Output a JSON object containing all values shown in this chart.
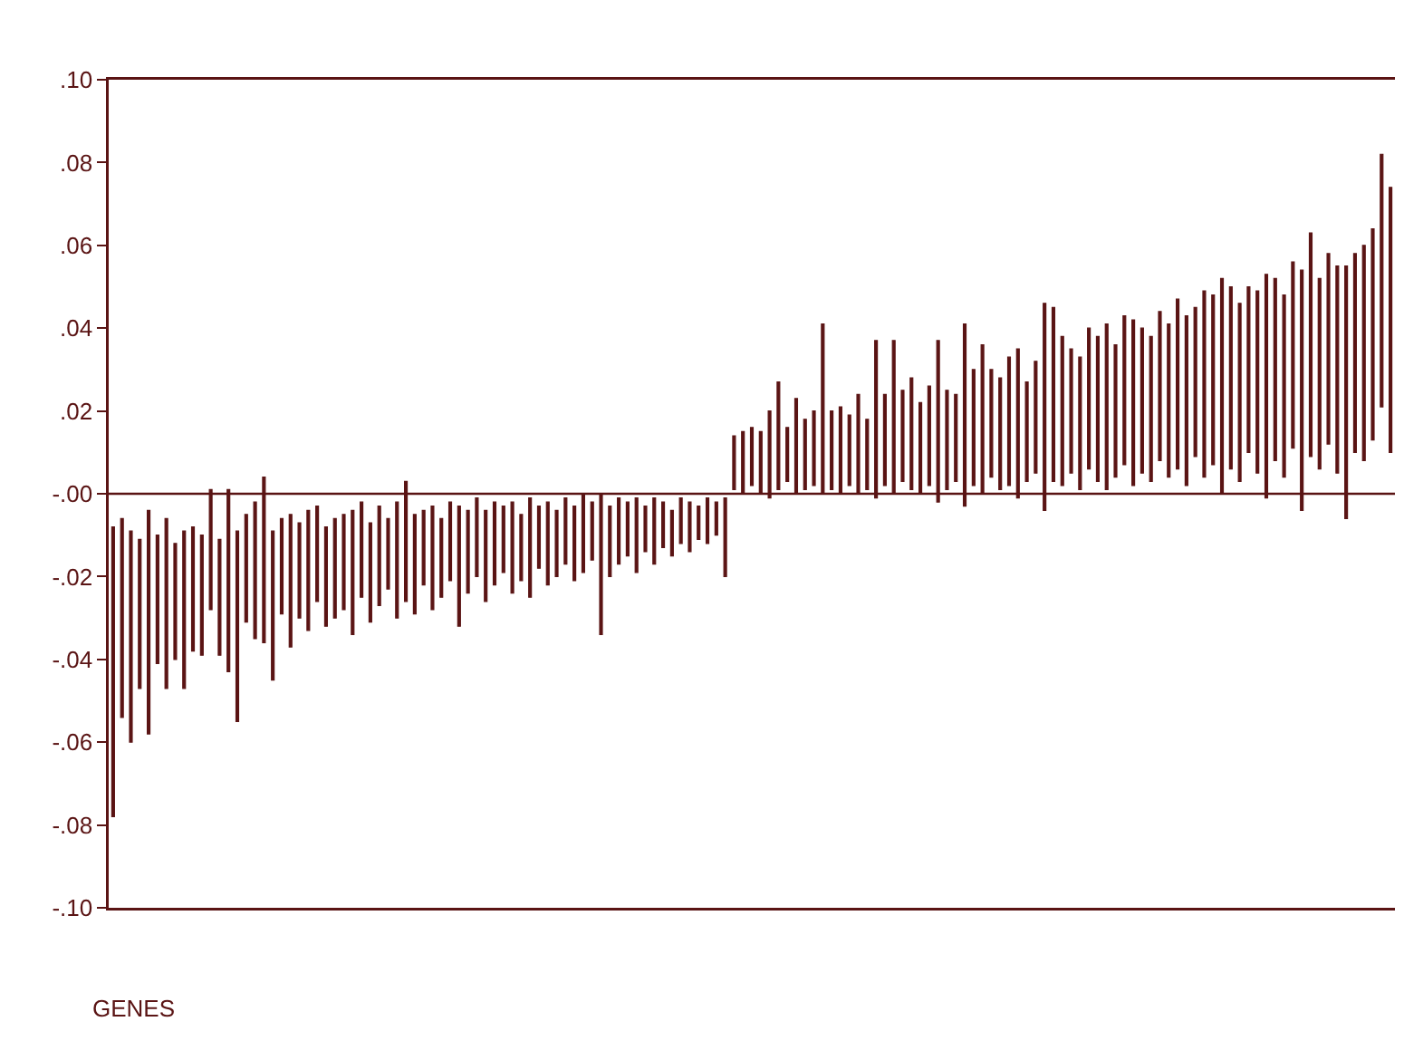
{
  "chart_data": {
    "type": "bar",
    "xlabel": "GENES",
    "color": "#5a1414",
    "tick_labels": "y",
    "grid": false,
    "legend": false,
    "categories": [
      null,
      null,
      null,
      null,
      null,
      null,
      null,
      null,
      null,
      null,
      null,
      null,
      null,
      null,
      null,
      null,
      null,
      null,
      null,
      null,
      null,
      null,
      null,
      null,
      null,
      null,
      null,
      null,
      null,
      null,
      null,
      null,
      null,
      null,
      null,
      null,
      null,
      null,
      null,
      null,
      null,
      null,
      null,
      null,
      null,
      null,
      null,
      null,
      null,
      null,
      null,
      null,
      null,
      null,
      null,
      null,
      null,
      null,
      null,
      null,
      null,
      null,
      null,
      null,
      null,
      null,
      null,
      null,
      null,
      null,
      null,
      null,
      null,
      null,
      null,
      null,
      null,
      null,
      null,
      null,
      null,
      null,
      null,
      null,
      null,
      null,
      null,
      null,
      null,
      null,
      null,
      null,
      null,
      null,
      null,
      null,
      null,
      null,
      null,
      null,
      null,
      null,
      null,
      null,
      null,
      null,
      null,
      null,
      null,
      null,
      null,
      null,
      null,
      null,
      null,
      null,
      null,
      null,
      null,
      null,
      null,
      null,
      null,
      null,
      null,
      null,
      null,
      null,
      null,
      null,
      null,
      null,
      null,
      null,
      null,
      null,
      null,
      null,
      null,
      null,
      null,
      null,
      null,
      null,
      null
    ],
    "values": [
      0.07,
      0.048,
      0.051,
      0.036,
      0.054,
      0.031,
      0.041,
      0.028,
      0.038,
      0.03,
      0.029,
      0.029,
      0.028,
      0.044,
      0.046,
      0.026,
      0.033,
      0.04,
      0.036,
      0.023,
      0.032,
      0.023,
      0.029,
      0.023,
      0.024,
      0.024,
      0.023,
      0.03,
      0.023,
      0.024,
      0.024,
      0.017,
      0.028,
      0.029,
      0.024,
      0.018,
      0.025,
      0.019,
      0.019,
      0.029,
      0.02,
      0.019,
      0.022,
      0.02,
      0.016,
      0.022,
      0.016,
      0.024,
      0.015,
      0.02,
      0.016,
      0.016,
      0.018,
      0.019,
      0.014,
      0.034,
      0.017,
      0.016,
      0.013,
      0.018,
      0.011,
      0.016,
      0.011,
      0.011,
      0.011,
      0.012,
      0.008,
      0.011,
      0.008,
      0.019,
      0.013,
      0.015,
      0.014,
      0.015,
      0.021,
      0.026,
      0.013,
      0.023,
      0.017,
      0.018,
      0.041,
      0.019,
      0.021,
      0.017,
      0.024,
      0.017,
      0.038,
      0.022,
      0.037,
      0.022,
      0.027,
      0.022,
      0.024,
      0.039,
      0.024,
      0.021,
      0.044,
      0.028,
      0.036,
      0.026,
      0.027,
      0.031,
      0.036,
      0.024,
      0.027,
      0.05,
      0.042,
      0.036,
      0.03,
      0.032,
      0.034,
      0.035,
      0.04,
      0.032,
      0.036,
      0.04,
      0.035,
      0.035,
      0.036,
      0.037,
      0.041,
      0.041,
      0.036,
      0.045,
      0.041,
      0.052,
      0.044,
      0.043,
      0.04,
      0.044,
      0.054,
      0.044,
      0.044,
      0.045,
      0.058,
      0.054,
      0.046,
      0.046,
      0.05,
      0.061,
      0.048,
      0.052,
      0.051,
      0.061,
      0.064
    ],
    "base": [
      -0.078,
      -0.054,
      -0.06,
      -0.047,
      -0.058,
      -0.041,
      -0.047,
      -0.04,
      -0.047,
      -0.038,
      -0.039,
      -0.028,
      -0.039,
      -0.043,
      -0.055,
      -0.031,
      -0.035,
      -0.036,
      -0.045,
      -0.029,
      -0.037,
      -0.03,
      -0.033,
      -0.026,
      -0.032,
      -0.03,
      -0.028,
      -0.034,
      -0.025,
      -0.031,
      -0.027,
      -0.023,
      -0.03,
      -0.026,
      -0.029,
      -0.022,
      -0.028,
      -0.025,
      -0.021,
      -0.032,
      -0.024,
      -0.02,
      -0.026,
      -0.022,
      -0.019,
      -0.024,
      -0.021,
      -0.025,
      -0.018,
      -0.022,
      -0.02,
      -0.017,
      -0.021,
      -0.019,
      -0.016,
      -0.034,
      -0.02,
      -0.017,
      -0.015,
      -0.019,
      -0.014,
      -0.017,
      -0.013,
      -0.015,
      -0.012,
      -0.014,
      -0.011,
      -0.012,
      -0.01,
      -0.02,
      0.001,
      0.0,
      0.002,
      0.0,
      -0.001,
      0.001,
      0.003,
      0.0,
      0.001,
      0.002,
      0.0,
      0.001,
      0.0,
      0.002,
      0.0,
      0.001,
      -0.001,
      0.002,
      0.0,
      0.003,
      0.001,
      0.0,
      0.002,
      -0.002,
      0.001,
      0.003,
      -0.003,
      0.002,
      0.0,
      0.004,
      0.001,
      0.002,
      -0.001,
      0.003,
      0.005,
      -0.004,
      0.003,
      0.002,
      0.005,
      0.001,
      0.006,
      0.003,
      0.001,
      0.004,
      0.007,
      0.002,
      0.005,
      0.003,
      0.008,
      0.004,
      0.006,
      0.002,
      0.009,
      0.004,
      0.007,
      0.0,
      0.006,
      0.003,
      0.01,
      0.005,
      -0.001,
      0.008,
      0.004,
      0.011,
      -0.004,
      0.009,
      0.006,
      0.012,
      0.005,
      -0.006,
      0.01,
      0.008,
      0.013,
      0.021,
      0.01
    ],
    "ylim": [
      -0.1,
      0.1
    ],
    "yticks": [
      {
        "value": 0.1,
        "label": ".10"
      },
      {
        "value": 0.08,
        "label": ".08"
      },
      {
        "value": 0.06,
        "label": ".06"
      },
      {
        "value": 0.04,
        "label": ".04"
      },
      {
        "value": 0.02,
        "label": ".02"
      },
      {
        "value": 0,
        "label": "-.00"
      },
      {
        "value": -0.02,
        "label": "-.02"
      },
      {
        "value": -0.04,
        "label": "-.04"
      },
      {
        "value": -0.06,
        "label": "-.06"
      },
      {
        "value": -0.08,
        "label": "-.08"
      },
      {
        "value": -0.1,
        "label": "-.10"
      }
    ],
    "ref_lines": [
      {
        "axis": "y",
        "value": 0,
        "color": "#5a1414"
      }
    ]
  }
}
